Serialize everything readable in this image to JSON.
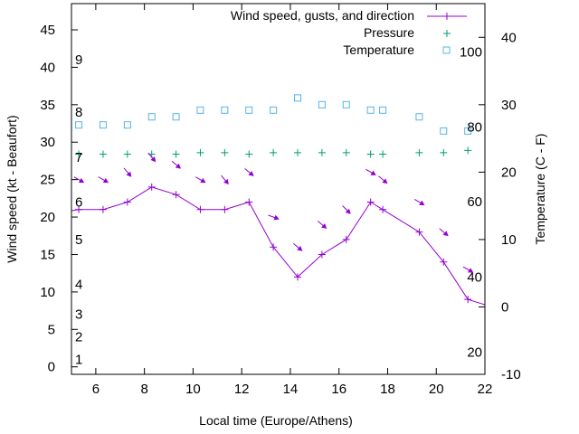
{
  "colors": {
    "wind": "#9400d3",
    "pressure": "#009e73",
    "temperature": "#56b4e9",
    "frame": "#000000",
    "background": "#ffffff"
  },
  "chart_data": {
    "type": "line",
    "title": "",
    "xlabel": "Local time (Europe/Athens)",
    "ylabel": "Wind speed (kt - Beaufort)",
    "y2label": "Temperature (C - F)",
    "xlim": [
      5,
      22
    ],
    "ylim": [
      -1,
      48.5
    ],
    "y2lim": [
      -10,
      45
    ],
    "x_ticks": [
      6,
      8,
      10,
      12,
      14,
      16,
      18,
      20,
      22
    ],
    "y_ticks": [
      0,
      5,
      10,
      15,
      20,
      25,
      30,
      35,
      40,
      45
    ],
    "y2_ticks": [
      -10,
      0,
      10,
      20,
      30,
      40
    ],
    "beaufort_labels": [
      {
        "text": "1",
        "y": 1
      },
      {
        "text": "2",
        "y": 4
      },
      {
        "text": "3",
        "y": 7
      },
      {
        "text": "4",
        "y": 11
      },
      {
        "text": "5",
        "y": 17
      },
      {
        "text": "6",
        "y": 22
      },
      {
        "text": "7",
        "y": 28
      },
      {
        "text": "8",
        "y": 34
      },
      {
        "text": "9",
        "y": 41
      }
    ],
    "fahrenheit_labels": [
      {
        "text": "20",
        "y2": -6.7
      },
      {
        "text": "40",
        "y2": 4.4
      },
      {
        "text": "60",
        "y2": 15.6
      },
      {
        "text": "80",
        "y2": 26.7
      },
      {
        "text": "100",
        "y2": 37.8
      }
    ],
    "legend_position": "top-right",
    "series": [
      {
        "name": "Wind speed, gusts, and direction",
        "style": "line+plus",
        "x": [
          4.3,
          5.3,
          6.3,
          7.3,
          8.3,
          9.3,
          10.3,
          11.3,
          12.3,
          13.3,
          14.3,
          15.3,
          16.3,
          17.3,
          17.8,
          19.3,
          20.3,
          21.3,
          22.3
        ],
        "y": [
          20.5,
          21,
          21,
          22,
          24,
          23,
          21,
          21,
          22,
          16,
          12,
          15,
          17,
          22,
          21,
          18,
          14,
          9,
          8
        ]
      },
      {
        "name": "Pressure",
        "style": "plus",
        "x": [
          5.3,
          6.3,
          7.3,
          8.3,
          9.3,
          10.3,
          11.3,
          12.3,
          13.3,
          14.3,
          15.3,
          16.3,
          17.3,
          17.8,
          19.3,
          20.3,
          21.3
        ],
        "y": [
          28.4,
          28.4,
          28.4,
          28.4,
          28.4,
          28.6,
          28.6,
          28.4,
          28.6,
          28.6,
          28.6,
          28.6,
          28.4,
          28.4,
          28.6,
          28.6,
          28.9
        ]
      },
      {
        "name": "Temperature",
        "style": "open-square",
        "x": [
          5.3,
          6.3,
          7.3,
          8.3,
          9.3,
          10.3,
          11.3,
          12.3,
          13.3,
          14.3,
          15.3,
          16.3,
          17.3,
          17.8,
          19.3,
          20.3,
          21.3
        ],
        "y2": [
          27,
          27,
          27,
          28.2,
          28.2,
          29.2,
          29.2,
          29.2,
          29.2,
          31,
          30,
          30,
          29.2,
          29.2,
          28.2,
          26.1,
          26.1
        ]
      }
    ],
    "wind_arrows": [
      {
        "x": 5.3,
        "y": 25,
        "dir": 300
      },
      {
        "x": 6.3,
        "y": 25,
        "dir": 300
      },
      {
        "x": 7.3,
        "y": 26,
        "dir": 320
      },
      {
        "x": 8.3,
        "y": 28,
        "dir": 320
      },
      {
        "x": 9.3,
        "y": 27,
        "dir": 310
      },
      {
        "x": 10.3,
        "y": 25,
        "dir": 300
      },
      {
        "x": 11.3,
        "y": 25,
        "dir": 320
      },
      {
        "x": 12.3,
        "y": 26,
        "dir": 310
      },
      {
        "x": 13.3,
        "y": 20,
        "dir": 290
      },
      {
        "x": 14.3,
        "y": 16,
        "dir": 310
      },
      {
        "x": 15.3,
        "y": 19,
        "dir": 310
      },
      {
        "x": 16.3,
        "y": 21,
        "dir": 315
      },
      {
        "x": 17.3,
        "y": 26,
        "dir": 300
      },
      {
        "x": 17.8,
        "y": 25,
        "dir": 310
      },
      {
        "x": 19.3,
        "y": 22,
        "dir": 300
      },
      {
        "x": 20.3,
        "y": 18,
        "dir": 310
      },
      {
        "x": 21.3,
        "y": 13,
        "dir": 300
      }
    ]
  }
}
